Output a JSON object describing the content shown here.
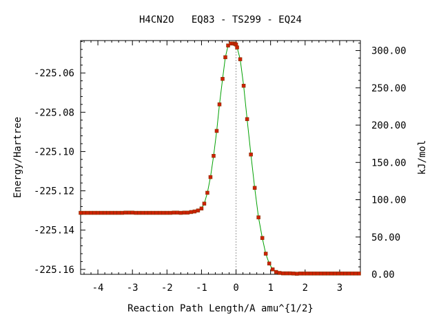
{
  "chart_data": {
    "type": "line",
    "title": "H4CN2O   EQ83 - TS299 - EQ24",
    "xlabel": "Reaction Path Length/A amu^{1/2}",
    "ylabel": "Energy/Hartree",
    "y2label": "kJ/mol",
    "xlim": [
      -4.5,
      3.6
    ],
    "ylim": [
      -225.1625,
      -225.0435
    ],
    "y2lim": [
      0,
      313.4
    ],
    "xticks": [
      -4,
      -3,
      -2,
      -1,
      0,
      1,
      2,
      3
    ],
    "xtick_labels": [
      "-4",
      "-3",
      "-2",
      "-1",
      "0",
      "1",
      "2",
      "3"
    ],
    "yticks": [
      -225.06,
      -225.08,
      -225.1,
      -225.12,
      -225.14,
      -225.16
    ],
    "ytick_labels": [
      "-225.06",
      "-225.08",
      "-225.10",
      "-225.12",
      "-225.14",
      "-225.16"
    ],
    "y2ticks": [
      0,
      50,
      100,
      150,
      200,
      250,
      300
    ],
    "y2tick_labels": [
      "0.00",
      "50.00",
      "100.00",
      "150.00",
      "200.00",
      "250.00",
      "300.00"
    ],
    "ts_marker_x": 0,
    "grid": false,
    "colors": {
      "line": "#00a000",
      "points": "#cc2200",
      "ts_marker": "#999999"
    },
    "series": [
      {
        "x": [
          -4.5,
          -4.4,
          -4.3,
          -4.2,
          -4.1,
          -4.0,
          -3.9,
          -3.8,
          -3.7,
          -3.6,
          -3.5,
          -3.4,
          -3.3,
          -3.2,
          -3.1,
          -3.0,
          -2.9,
          -2.8,
          -2.7,
          -2.6,
          -2.5,
          -2.4,
          -2.3,
          -2.2,
          -2.1,
          -2.0,
          -1.9,
          -1.8,
          -1.7,
          -1.6,
          -1.5,
          -1.4,
          -1.3,
          -1.2,
          -1.1,
          -1.0,
          -0.92,
          -0.83,
          -0.74,
          -0.65,
          -0.56,
          -0.48,
          -0.39,
          -0.31,
          -0.23,
          -0.15,
          -0.08,
          -0.03,
          0.0,
          0.03,
          0.12,
          0.22,
          0.32,
          0.43,
          0.54,
          0.65,
          0.76,
          0.86,
          0.96,
          1.06,
          1.16,
          1.26,
          1.36,
          1.46,
          1.56,
          1.66,
          1.76,
          1.86,
          1.96,
          2.06,
          2.16,
          2.26,
          2.36,
          2.46,
          2.56,
          2.66,
          2.76,
          2.86,
          2.96,
          3.06,
          3.16,
          3.26,
          3.36,
          3.46,
          3.56
        ],
        "y": [
          -225.1312,
          -225.1312,
          -225.1312,
          -225.1312,
          -225.1312,
          -225.1312,
          -225.1312,
          -225.1312,
          -225.1312,
          -225.1312,
          -225.1312,
          -225.1312,
          -225.1312,
          -225.1311,
          -225.1311,
          -225.1311,
          -225.1312,
          -225.1312,
          -225.1312,
          -225.1312,
          -225.1312,
          -225.1312,
          -225.1312,
          -225.1312,
          -225.1312,
          -225.1312,
          -225.1312,
          -225.1311,
          -225.1311,
          -225.1312,
          -225.1311,
          -225.1311,
          -225.1308,
          -225.1305,
          -225.13,
          -225.129,
          -225.1265,
          -225.121,
          -225.113,
          -225.1022,
          -225.0895,
          -225.076,
          -225.063,
          -225.052,
          -225.046,
          -225.045,
          -225.045,
          -225.0452,
          -225.0455,
          -225.047,
          -225.053,
          -225.0665,
          -225.0835,
          -225.1015,
          -225.1185,
          -225.1335,
          -225.144,
          -225.152,
          -225.157,
          -225.16,
          -225.1613,
          -225.1618,
          -225.162,
          -225.162,
          -225.162,
          -225.1621,
          -225.1622,
          -225.1621,
          -225.1621,
          -225.1621,
          -225.1621,
          -225.1621,
          -225.1621,
          -225.1621,
          -225.1621,
          -225.1621,
          -225.1621,
          -225.1621,
          -225.1621,
          -225.1621,
          -225.1621,
          -225.1621,
          -225.1621,
          -225.1621,
          -225.1621
        ]
      }
    ]
  }
}
